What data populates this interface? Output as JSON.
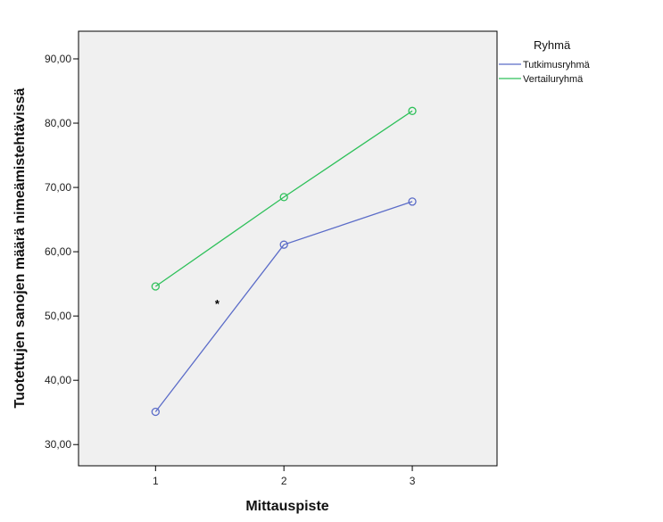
{
  "chart_data": {
    "type": "line",
    "x": [
      1,
      2,
      3
    ],
    "x_tick_labels": [
      "1",
      "2",
      "3"
    ],
    "xlim": [
      0.4,
      3.66
    ],
    "ylim": [
      26.7,
      94.3
    ],
    "y_ticks": [
      30,
      40,
      50,
      60,
      70,
      80,
      90
    ],
    "y_tick_labels": [
      "30,00",
      "40,00",
      "50,00",
      "60,00",
      "70,00",
      "80,00",
      "90,00"
    ],
    "xlabel": "Mittauspiste",
    "ylabel": "Tuotettujen sanojen määrä nimeämistehtävissä",
    "grid": false,
    "legend": {
      "title": "Ryhmä",
      "position": "right"
    },
    "series": [
      {
        "name": "Tutkimusryhmä",
        "color": "#5b6cc8",
        "values": [
          35.1,
          61.1,
          67.8
        ]
      },
      {
        "name": "Vertailuryhmä",
        "color": "#2ec05a",
        "values": [
          54.6,
          68.5,
          81.9
        ]
      }
    ],
    "annotations": [
      {
        "text": "*",
        "x": 1.48,
        "y": 52.5
      }
    ]
  },
  "colors": {
    "plot_background": "#f0f0f0",
    "frame": "#000000"
  }
}
